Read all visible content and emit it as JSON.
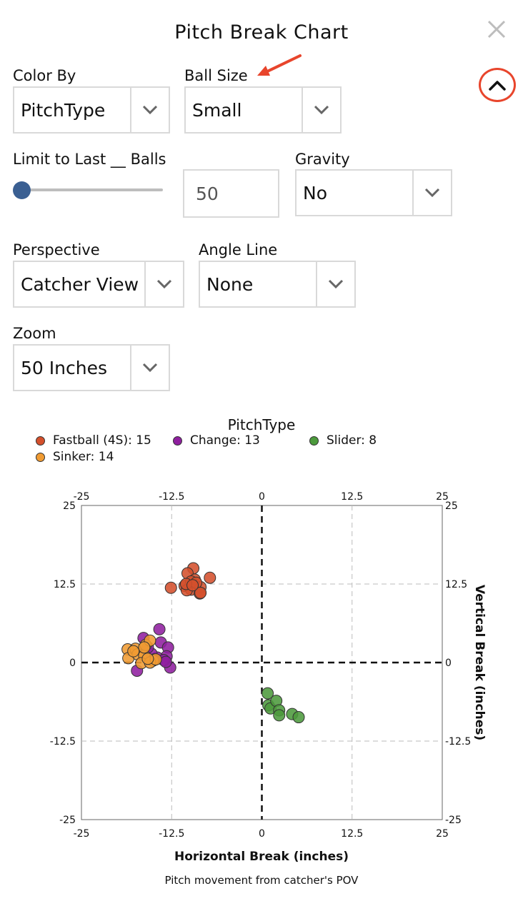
{
  "header": {
    "title": "Pitch Break Chart"
  },
  "controls": {
    "color_by": {
      "label": "Color By",
      "value": "PitchType"
    },
    "ball_size": {
      "label": "Ball Size",
      "value": "Small"
    },
    "limit": {
      "label": "Limit to Last __ Balls",
      "value": "50"
    },
    "gravity": {
      "label": "Gravity",
      "value": "No"
    },
    "perspective": {
      "label": "Perspective",
      "value": "Catcher View"
    },
    "angle_line": {
      "label": "Angle Line",
      "value": "None"
    },
    "zoom": {
      "label": "Zoom",
      "value": "50 Inches"
    }
  },
  "icons": {
    "close": "close-icon",
    "collapse": "chevron-up-icon",
    "dropdown": "chevron-down-icon",
    "annotation": "arrow-icon"
  },
  "colors": {
    "fastball": "#d4502c",
    "change": "#8f1f9f",
    "slider": "#4c9a3c",
    "sinker": "#f09b32",
    "slider_thumb": "#3a5f92",
    "annotation": "#e8452c"
  },
  "chart_data": {
    "type": "scatter",
    "legend_title": "PitchType",
    "legend": [
      {
        "key": "fastball",
        "label": "Fastball (4S): 15"
      },
      {
        "key": "change",
        "label": "Change: 13"
      },
      {
        "key": "slider",
        "label": "Slider: 8"
      },
      {
        "key": "sinker",
        "label": "Sinker: 14"
      }
    ],
    "xlabel": "Horizontal Break (inches)",
    "ylabel": "Vertical Break (inches)",
    "caption": "Pitch movement from catcher's POV",
    "xlim": [
      -25,
      25
    ],
    "ylim": [
      -25,
      25
    ],
    "ticks": [
      "-25",
      "-12.5",
      "0",
      "12.5",
      "25"
    ],
    "tick_values": [
      -25,
      -12.5,
      0,
      12.5,
      25
    ],
    "grid": true,
    "series": [
      {
        "key": "fastball",
        "points": [
          [
            -9.5,
            15
          ],
          [
            -10.3,
            14.2
          ],
          [
            -12.6,
            11.9
          ],
          [
            -10.7,
            12.2
          ],
          [
            -9.8,
            11.6
          ],
          [
            -9.3,
            13.2
          ],
          [
            -8.5,
            12
          ],
          [
            -8.6,
            11
          ],
          [
            -7.2,
            13.5
          ],
          [
            -9.8,
            12.9
          ],
          [
            -10.4,
            11.5
          ],
          [
            -9.1,
            12.7
          ],
          [
            -8.5,
            11.1
          ],
          [
            -10.5,
            12.5
          ],
          [
            -9.6,
            12.3
          ]
        ]
      },
      {
        "key": "change",
        "points": [
          [
            -14.2,
            5.3
          ],
          [
            -16.4,
            3.9
          ],
          [
            -14,
            3.2
          ],
          [
            -13,
            2.4
          ],
          [
            -13.2,
            1
          ],
          [
            -14.5,
            0.8
          ],
          [
            -15.3,
            1.4
          ],
          [
            -12.7,
            -0.8
          ],
          [
            -17.3,
            -1.3
          ],
          [
            -13.6,
            0.4
          ],
          [
            -15.8,
            2.4
          ],
          [
            -14.9,
            0.5
          ],
          [
            -13.3,
            0.1
          ]
        ]
      },
      {
        "key": "sinker",
        "points": [
          [
            -18.6,
            2.1
          ],
          [
            -17.5,
            2.2
          ],
          [
            -18.5,
            0.7
          ],
          [
            -17.2,
            1.3
          ],
          [
            -16.3,
            1.1
          ],
          [
            -16.1,
            2.8
          ],
          [
            -15.5,
            3.5
          ],
          [
            -16.7,
            -0.1
          ],
          [
            -15.1,
            0.3
          ],
          [
            -15.5,
            0
          ],
          [
            -16.3,
            2.4
          ],
          [
            -14.7,
            0.5
          ],
          [
            -17.8,
            1.8
          ],
          [
            -15.8,
            0.6
          ]
        ]
      },
      {
        "key": "slider",
        "points": [
          [
            0.8,
            -4.9
          ],
          [
            0.9,
            -6.8
          ],
          [
            1.2,
            -7.3
          ],
          [
            2,
            -6.1
          ],
          [
            2.4,
            -7.6
          ],
          [
            2.4,
            -8.4
          ],
          [
            4.2,
            -8.2
          ],
          [
            5.1,
            -8.7
          ]
        ]
      }
    ]
  }
}
